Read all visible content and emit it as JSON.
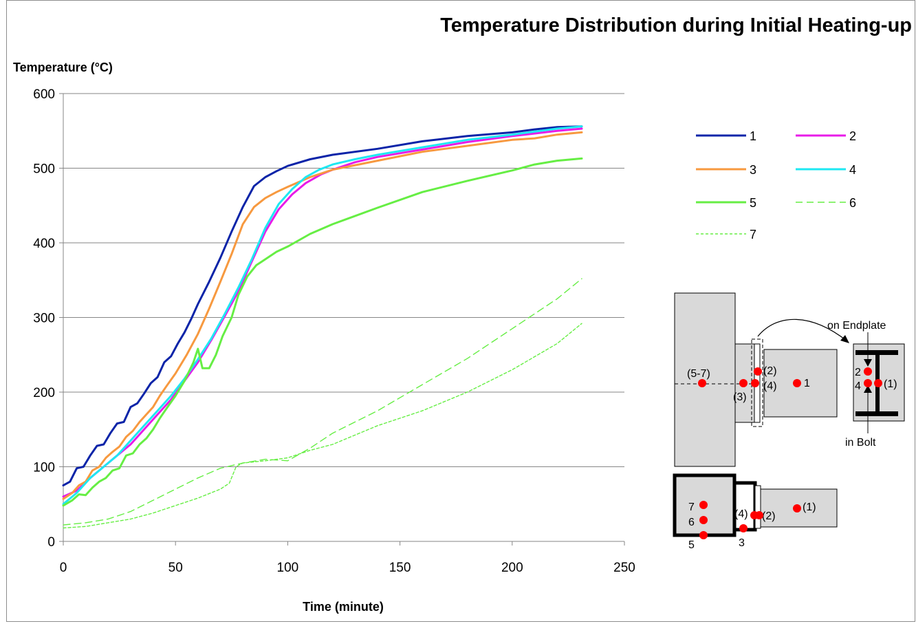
{
  "chart_data": {
    "type": "line",
    "title": "Temperature Distribution during Initial Heating-up",
    "xlabel": "Time (minute)",
    "ylabel": "Temperature (°C)",
    "xlim": [
      0,
      250
    ],
    "ylim": [
      0,
      600
    ],
    "x_ticks": [
      "0",
      "50",
      "100",
      "150",
      "200",
      "250"
    ],
    "y_ticks": [
      "0",
      "100",
      "200",
      "300",
      "400",
      "500",
      "600"
    ],
    "grid": "horizontal",
    "legend_position": "right",
    "series": [
      {
        "name": "1",
        "color": "#0b24a8",
        "dash": "solid",
        "points": [
          [
            0,
            75
          ],
          [
            3,
            80
          ],
          [
            6,
            98
          ],
          [
            9,
            100
          ],
          [
            12,
            115
          ],
          [
            15,
            128
          ],
          [
            18,
            130
          ],
          [
            21,
            145
          ],
          [
            24,
            158
          ],
          [
            27,
            160
          ],
          [
            30,
            180
          ],
          [
            33,
            185
          ],
          [
            36,
            198
          ],
          [
            39,
            212
          ],
          [
            42,
            220
          ],
          [
            45,
            240
          ],
          [
            48,
            248
          ],
          [
            51,
            265
          ],
          [
            54,
            280
          ],
          [
            57,
            298
          ],
          [
            60,
            318
          ],
          [
            65,
            348
          ],
          [
            70,
            380
          ],
          [
            75,
            415
          ],
          [
            80,
            448
          ],
          [
            85,
            476
          ],
          [
            90,
            488
          ],
          [
            95,
            496
          ],
          [
            100,
            503
          ],
          [
            110,
            512
          ],
          [
            120,
            518
          ],
          [
            140,
            526
          ],
          [
            160,
            536
          ],
          [
            180,
            543
          ],
          [
            200,
            548
          ],
          [
            210,
            552
          ],
          [
            220,
            555
          ],
          [
            231,
            556
          ]
        ]
      },
      {
        "name": "2",
        "color": "#e81be8",
        "dash": "solid",
        "points": [
          [
            0,
            60
          ],
          [
            6,
            68
          ],
          [
            12,
            85
          ],
          [
            18,
            100
          ],
          [
            24,
            115
          ],
          [
            30,
            130
          ],
          [
            36,
            150
          ],
          [
            42,
            170
          ],
          [
            48,
            190
          ],
          [
            54,
            215
          ],
          [
            60,
            240
          ],
          [
            66,
            270
          ],
          [
            72,
            302
          ],
          [
            78,
            335
          ],
          [
            84,
            375
          ],
          [
            90,
            415
          ],
          [
            96,
            445
          ],
          [
            102,
            465
          ],
          [
            108,
            480
          ],
          [
            115,
            492
          ],
          [
            120,
            498
          ],
          [
            130,
            508
          ],
          [
            140,
            515
          ],
          [
            160,
            525
          ],
          [
            180,
            535
          ],
          [
            200,
            543
          ],
          [
            220,
            550
          ],
          [
            231,
            553
          ]
        ]
      },
      {
        "name": "3",
        "color": "#f7993f",
        "dash": "solid",
        "points": [
          [
            0,
            57
          ],
          [
            4,
            65
          ],
          [
            7,
            75
          ],
          [
            10,
            80
          ],
          [
            13,
            95
          ],
          [
            16,
            100
          ],
          [
            19,
            112
          ],
          [
            22,
            120
          ],
          [
            25,
            127
          ],
          [
            28,
            140
          ],
          [
            31,
            148
          ],
          [
            34,
            160
          ],
          [
            37,
            170
          ],
          [
            40,
            180
          ],
          [
            43,
            195
          ],
          [
            46,
            208
          ],
          [
            50,
            225
          ],
          [
            55,
            250
          ],
          [
            60,
            278
          ],
          [
            65,
            312
          ],
          [
            70,
            348
          ],
          [
            75,
            385
          ],
          [
            80,
            425
          ],
          [
            85,
            448
          ],
          [
            90,
            460
          ],
          [
            95,
            468
          ],
          [
            100,
            475
          ],
          [
            110,
            488
          ],
          [
            120,
            498
          ],
          [
            140,
            510
          ],
          [
            160,
            522
          ],
          [
            180,
            530
          ],
          [
            200,
            538
          ],
          [
            210,
            540
          ],
          [
            220,
            545
          ],
          [
            231,
            548
          ]
        ]
      },
      {
        "name": "4",
        "color": "#1ee8f2",
        "dash": "solid",
        "points": [
          [
            0,
            50
          ],
          [
            6,
            65
          ],
          [
            12,
            85
          ],
          [
            18,
            100
          ],
          [
            24,
            115
          ],
          [
            30,
            135
          ],
          [
            36,
            155
          ],
          [
            42,
            175
          ],
          [
            48,
            195
          ],
          [
            54,
            218
          ],
          [
            60,
            244
          ],
          [
            66,
            272
          ],
          [
            72,
            305
          ],
          [
            78,
            340
          ],
          [
            84,
            378
          ],
          [
            90,
            420
          ],
          [
            96,
            452
          ],
          [
            102,
            472
          ],
          [
            108,
            488
          ],
          [
            114,
            498
          ],
          [
            120,
            505
          ],
          [
            130,
            512
          ],
          [
            140,
            518
          ],
          [
            160,
            528
          ],
          [
            180,
            538
          ],
          [
            200,
            545
          ],
          [
            220,
            553
          ],
          [
            231,
            556
          ]
        ]
      },
      {
        "name": "5",
        "color": "#66ee44",
        "dash": "solid",
        "points": [
          [
            0,
            48
          ],
          [
            4,
            55
          ],
          [
            7,
            63
          ],
          [
            10,
            62
          ],
          [
            13,
            72
          ],
          [
            16,
            80
          ],
          [
            19,
            85
          ],
          [
            22,
            95
          ],
          [
            25,
            98
          ],
          [
            28,
            115
          ],
          [
            31,
            118
          ],
          [
            34,
            130
          ],
          [
            37,
            138
          ],
          [
            40,
            150
          ],
          [
            43,
            165
          ],
          [
            46,
            178
          ],
          [
            50,
            195
          ],
          [
            54,
            215
          ],
          [
            58,
            240
          ],
          [
            60,
            258
          ],
          [
            62,
            232
          ],
          [
            65,
            232
          ],
          [
            68,
            250
          ],
          [
            71,
            275
          ],
          [
            75,
            300
          ],
          [
            78,
            330
          ],
          [
            82,
            355
          ],
          [
            86,
            370
          ],
          [
            90,
            378
          ],
          [
            95,
            388
          ],
          [
            100,
            395
          ],
          [
            110,
            412
          ],
          [
            120,
            425
          ],
          [
            140,
            447
          ],
          [
            160,
            468
          ],
          [
            180,
            483
          ],
          [
            200,
            497
          ],
          [
            210,
            505
          ],
          [
            220,
            510
          ],
          [
            231,
            513
          ]
        ]
      },
      {
        "name": "6",
        "color": "#66ee44",
        "dash": "longdash",
        "points": [
          [
            0,
            22
          ],
          [
            10,
            25
          ],
          [
            20,
            30
          ],
          [
            30,
            40
          ],
          [
            40,
            55
          ],
          [
            50,
            70
          ],
          [
            60,
            85
          ],
          [
            70,
            98
          ],
          [
            80,
            105
          ],
          [
            90,
            110
          ],
          [
            100,
            108
          ],
          [
            110,
            125
          ],
          [
            120,
            145
          ],
          [
            140,
            175
          ],
          [
            160,
            210
          ],
          [
            180,
            245
          ],
          [
            200,
            285
          ],
          [
            220,
            325
          ],
          [
            231,
            352
          ]
        ]
      },
      {
        "name": "7",
        "color": "#66ee44",
        "dash": "shortdash",
        "points": [
          [
            0,
            18
          ],
          [
            10,
            20
          ],
          [
            20,
            25
          ],
          [
            30,
            30
          ],
          [
            40,
            38
          ],
          [
            50,
            48
          ],
          [
            60,
            58
          ],
          [
            70,
            70
          ],
          [
            74,
            78
          ],
          [
            77,
            100
          ],
          [
            80,
            105
          ],
          [
            90,
            108
          ],
          [
            100,
            112
          ],
          [
            110,
            122
          ],
          [
            120,
            130
          ],
          [
            140,
            155
          ],
          [
            160,
            175
          ],
          [
            180,
            200
          ],
          [
            200,
            230
          ],
          [
            220,
            265
          ],
          [
            231,
            292
          ]
        ]
      }
    ]
  },
  "diagram": {
    "labels": {
      "side_5_7": "(5-7)",
      "side_3": "(3)",
      "side_2": "(2)",
      "side_4": "(4)",
      "side_1": "1",
      "detail_top": "on Endplate",
      "detail_bottom": "in Bolt",
      "detail_2": "2",
      "detail_4": "4",
      "detail_1": "(1)",
      "plan_7": "7",
      "plan_6": "6",
      "plan_5": "5",
      "plan_3": "3",
      "plan_4": "(4)",
      "plan_2": "(2)",
      "plan_1": "(1)"
    },
    "marker_color": "#ff0000"
  }
}
